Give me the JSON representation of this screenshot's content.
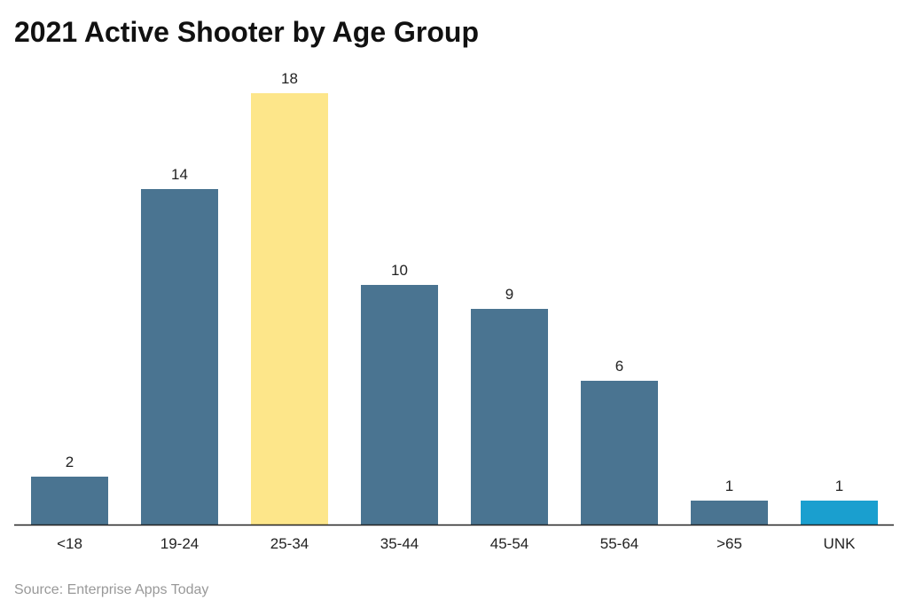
{
  "chart_data": {
    "type": "bar",
    "title": "2021 Active Shooter by Age Group",
    "categories": [
      "<18",
      "19-24",
      "25-34",
      "35-44",
      "45-54",
      "55-64",
      ">65",
      "UNK"
    ],
    "values": [
      2,
      14,
      18,
      10,
      9,
      6,
      1,
      1
    ],
    "colors": [
      "#4a7491",
      "#4a7491",
      "#fde68a",
      "#4a7491",
      "#4a7491",
      "#4a7491",
      "#4a7491",
      "#1a9fcf"
    ],
    "xlabel": "",
    "ylabel": "",
    "ylim": [
      0,
      18
    ],
    "grid": false,
    "source": "Source: Enterprise Apps Today"
  }
}
